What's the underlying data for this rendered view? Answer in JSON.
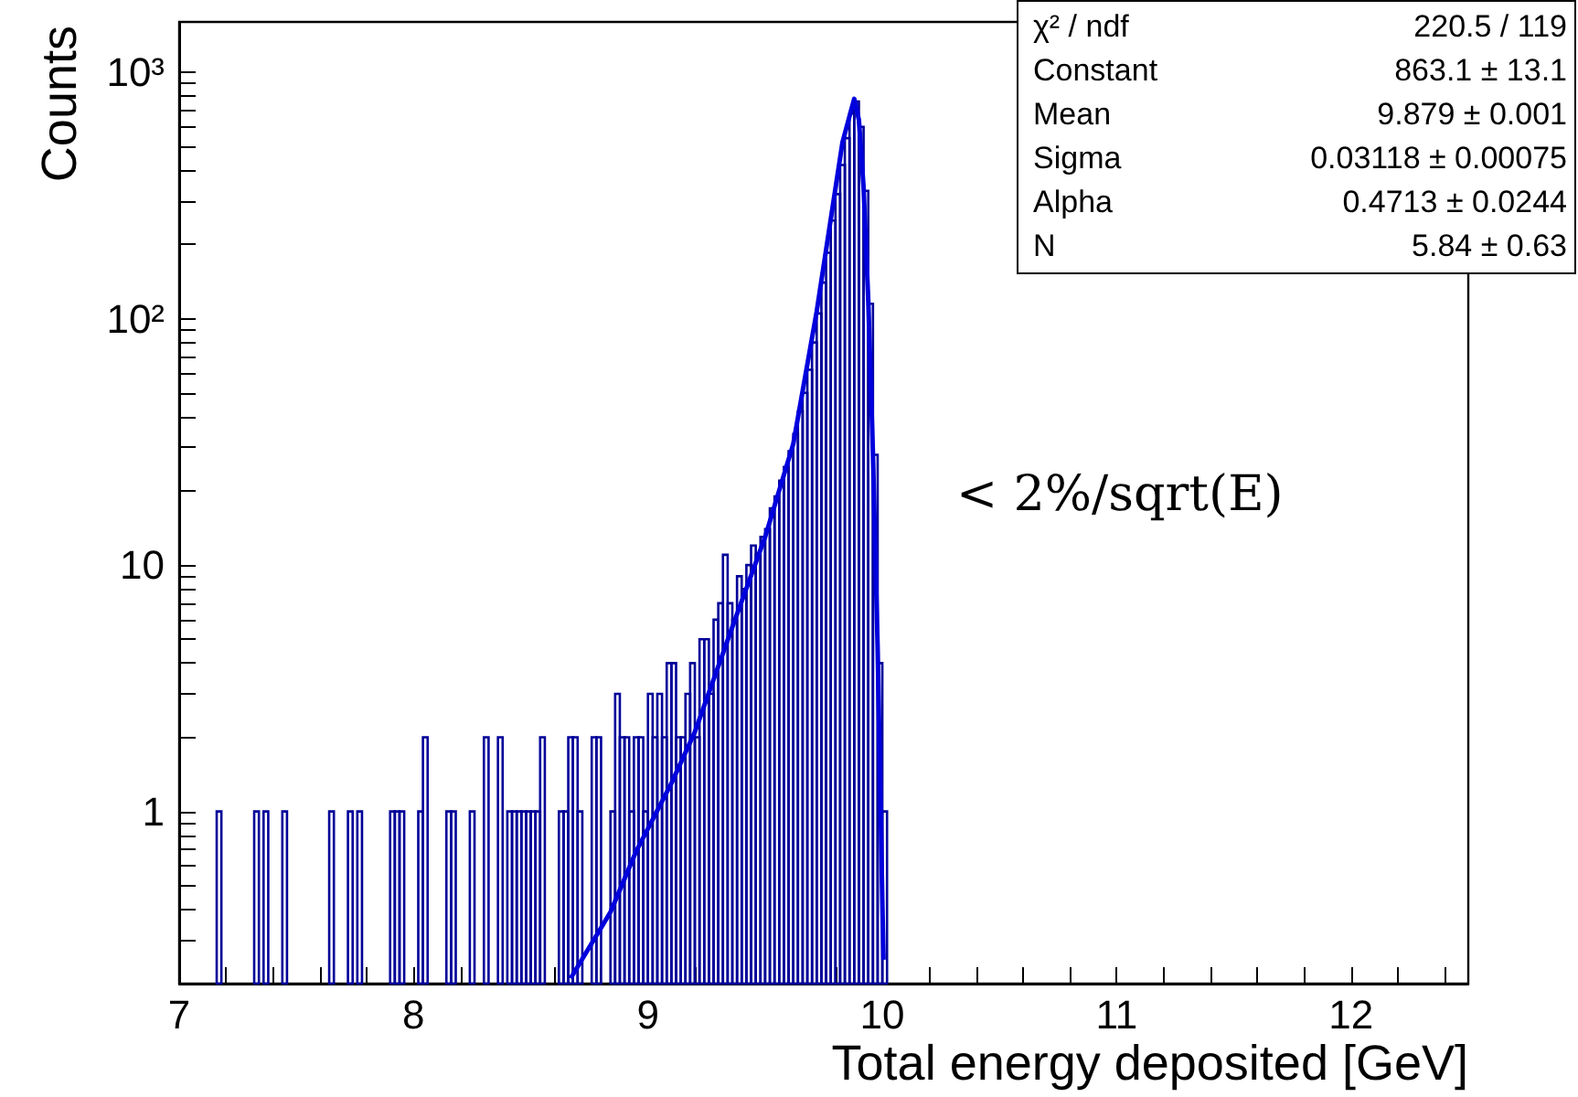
{
  "chart_data": {
    "type": "histogram",
    "xlabel": "Total energy deposited [GeV]",
    "ylabel": "Counts",
    "annotations": [
      "< 2%/sqrt(E)",
      "χ² / ndf",
      "220.5 / 119",
      "Constant",
      "863.1 ± 13.1",
      "Mean",
      "9.879 ± 0.001",
      "Sigma",
      "0.03118 ± 0.00075",
      "Alpha",
      "0.4713 ± 0.0244",
      "N",
      "5.84 ± 0.63"
    ],
    "xlim": [
      7,
      12.5
    ],
    "xticks": [
      7,
      {
        "value": 7.2,
        "label": null
      },
      {
        "value": 7.4,
        "label": null
      },
      {
        "value": 7.6,
        "label": null
      },
      {
        "value": 7.8,
        "label": null
      },
      8,
      {
        "value": 8.2,
        "label": null
      },
      {
        "value": 8.4,
        "label": null
      },
      {
        "value": 8.6,
        "label": null
      },
      {
        "value": 8.8,
        "label": null
      },
      9,
      {
        "value": 9.2,
        "label": null
      },
      {
        "value": 9.4,
        "label": null
      },
      {
        "value": 9.6,
        "label": null
      },
      {
        "value": 9.8,
        "label": null
      },
      10,
      {
        "value": 10.2,
        "label": null
      },
      {
        "value": 10.4,
        "label": null
      },
      {
        "value": 10.6,
        "label": null
      },
      {
        "value": 10.8,
        "label": null
      },
      11,
      {
        "value": 11.2,
        "label": null
      },
      {
        "value": 11.4,
        "label": null
      },
      {
        "value": 11.6,
        "label": null
      },
      {
        "value": 11.8,
        "label": null
      },
      12,
      {
        "value": 12.2,
        "label": null
      },
      {
        "value": 12.4,
        "label": null
      }
    ],
    "ylim": [
      0.2,
      1600
    ],
    "yticks": [
      {
        "value": 0.3,
        "label": null
      },
      {
        "value": 0.4,
        "label": null
      },
      {
        "value": 0.5,
        "label": null
      },
      {
        "value": 0.6,
        "label": null
      },
      {
        "value": 0.7,
        "label": null
      },
      {
        "value": 0.8,
        "label": null
      },
      {
        "value": 0.9,
        "label": null
      },
      1,
      {
        "value": 2,
        "label": null
      },
      {
        "value": 3,
        "label": null
      },
      {
        "value": 4,
        "label": null
      },
      {
        "value": 5,
        "label": null
      },
      {
        "value": 6,
        "label": null
      },
      {
        "value": 7,
        "label": null
      },
      {
        "value": 8,
        "label": null
      },
      {
        "value": 9,
        "label": null
      },
      10,
      {
        "value": 20,
        "label": null
      },
      {
        "value": 30,
        "label": null
      },
      {
        "value": 40,
        "label": null
      },
      {
        "value": 50,
        "label": null
      },
      {
        "value": 60,
        "label": null
      },
      {
        "value": 70,
        "label": null
      },
      {
        "value": 80,
        "label": null
      },
      {
        "value": 90,
        "label": null
      },
      {
        "value": 100,
        "label": "10²"
      },
      {
        "value": 200,
        "label": null
      },
      {
        "value": 300,
        "label": null
      },
      {
        "value": 400,
        "label": null
      },
      {
        "value": 500,
        "label": null
      },
      {
        "value": 600,
        "label": null
      },
      {
        "value": 700,
        "label": null
      },
      {
        "value": 800,
        "label": null
      },
      {
        "value": 900,
        "label": null
      },
      {
        "value": 1000,
        "label": "10³"
      }
    ],
    "log": "y",
    "marker": "none",
    "series": [
      {
        "color": "#000099",
        "bins": [
          7.14,
          7.16,
          7.18,
          7.2,
          7.22,
          7.24,
          7.26,
          7.28,
          7.3,
          7.32,
          7.34,
          7.36,
          7.38,
          7.4,
          7.42,
          7.44,
          7.46,
          7.48,
          7.5,
          7.52,
          7.54,
          7.56,
          7.58,
          7.6,
          7.62,
          7.64,
          7.66,
          7.68,
          7.7,
          7.72,
          7.74,
          7.76,
          7.78,
          7.8,
          7.82,
          7.84,
          7.86,
          7.88,
          7.9,
          7.92,
          7.94,
          7.96,
          7.98,
          8,
          8.02,
          8.04,
          8.06,
          8.08,
          8.1,
          8.12,
          8.14,
          8.16,
          8.18,
          8.2,
          8.22,
          8.24,
          8.26,
          8.28,
          8.3,
          8.32,
          8.34,
          8.36,
          8.38,
          8.4,
          8.42,
          8.44,
          8.46,
          8.48,
          8.5,
          8.52,
          8.54,
          8.56,
          8.58,
          8.6,
          8.62,
          8.64,
          8.66,
          8.68,
          8.7,
          8.72,
          8.74,
          8.76,
          8.78,
          8.8,
          8.82,
          8.84,
          8.86,
          8.88,
          8.9,
          8.92,
          8.94,
          8.96,
          8.98,
          9,
          9.02,
          9.04,
          9.06,
          9.08,
          9.1,
          9.12,
          9.14,
          9.16,
          9.18,
          9.2,
          9.22,
          9.24,
          9.26,
          9.28,
          9.3,
          9.32,
          9.34,
          9.36,
          9.38,
          9.4,
          9.42,
          9.44,
          9.46,
          9.48,
          9.5,
          9.52,
          9.54,
          9.56,
          9.58,
          9.6,
          9.62,
          9.64,
          9.66,
          9.68,
          9.7,
          9.72,
          9.74,
          9.76,
          9.78,
          9.8,
          9.82,
          9.84,
          9.86,
          9.88,
          9.9,
          9.92,
          9.94,
          9.96,
          9.98,
          10,
          10.02,
          10.04
        ],
        "values": [
          null,
          1,
          null,
          null,
          null,
          null,
          null,
          null,
          null,
          1,
          null,
          1,
          null,
          null,
          null,
          1,
          null,
          null,
          null,
          null,
          null,
          null,
          null,
          null,
          null,
          1,
          null,
          null,
          null,
          1,
          null,
          1,
          null,
          null,
          null,
          null,
          null,
          null,
          1,
          1,
          1,
          null,
          null,
          null,
          1,
          2,
          null,
          null,
          null,
          null,
          1,
          1,
          null,
          null,
          null,
          1,
          null,
          null,
          2,
          null,
          null,
          2,
          null,
          1,
          1,
          1,
          1,
          1,
          1,
          1,
          2,
          null,
          null,
          null,
          1,
          1,
          2,
          2,
          1,
          null,
          null,
          2,
          2,
          null,
          null,
          1,
          3,
          2,
          2,
          1,
          2,
          2,
          1,
          3,
          2,
          3,
          2,
          4,
          4,
          2,
          2,
          3,
          4,
          2,
          5,
          5,
          3,
          6,
          7,
          11,
          7,
          6,
          9,
          8,
          10,
          12,
          11,
          13,
          14,
          17,
          19,
          22,
          25,
          29,
          34,
          42,
          50,
          62,
          80,
          105,
          140,
          185,
          250,
          320,
          420,
          540,
          680,
          760,
          600,
          330,
          115,
          28,
          4,
          1,
          null
        ]
      },
      {
        "type": "line",
        "color": "#0000dd",
        "x": [
          8.67,
          8.84,
          8.95,
          9.1,
          9.2,
          9.36,
          9.5,
          9.62,
          9.72,
          9.83,
          9.88,
          9.9,
          9.92,
          9.94,
          9.96,
          9.98,
          10.0,
          10.005
        ],
        "values": [
          0.21,
          0.39,
          0.69,
          1.3,
          2.1,
          5.6,
          13,
          31,
          107,
          520,
          780,
          640,
          340,
          118,
          28,
          4.6,
          0.43,
          0.25
        ]
      }
    ]
  }
}
